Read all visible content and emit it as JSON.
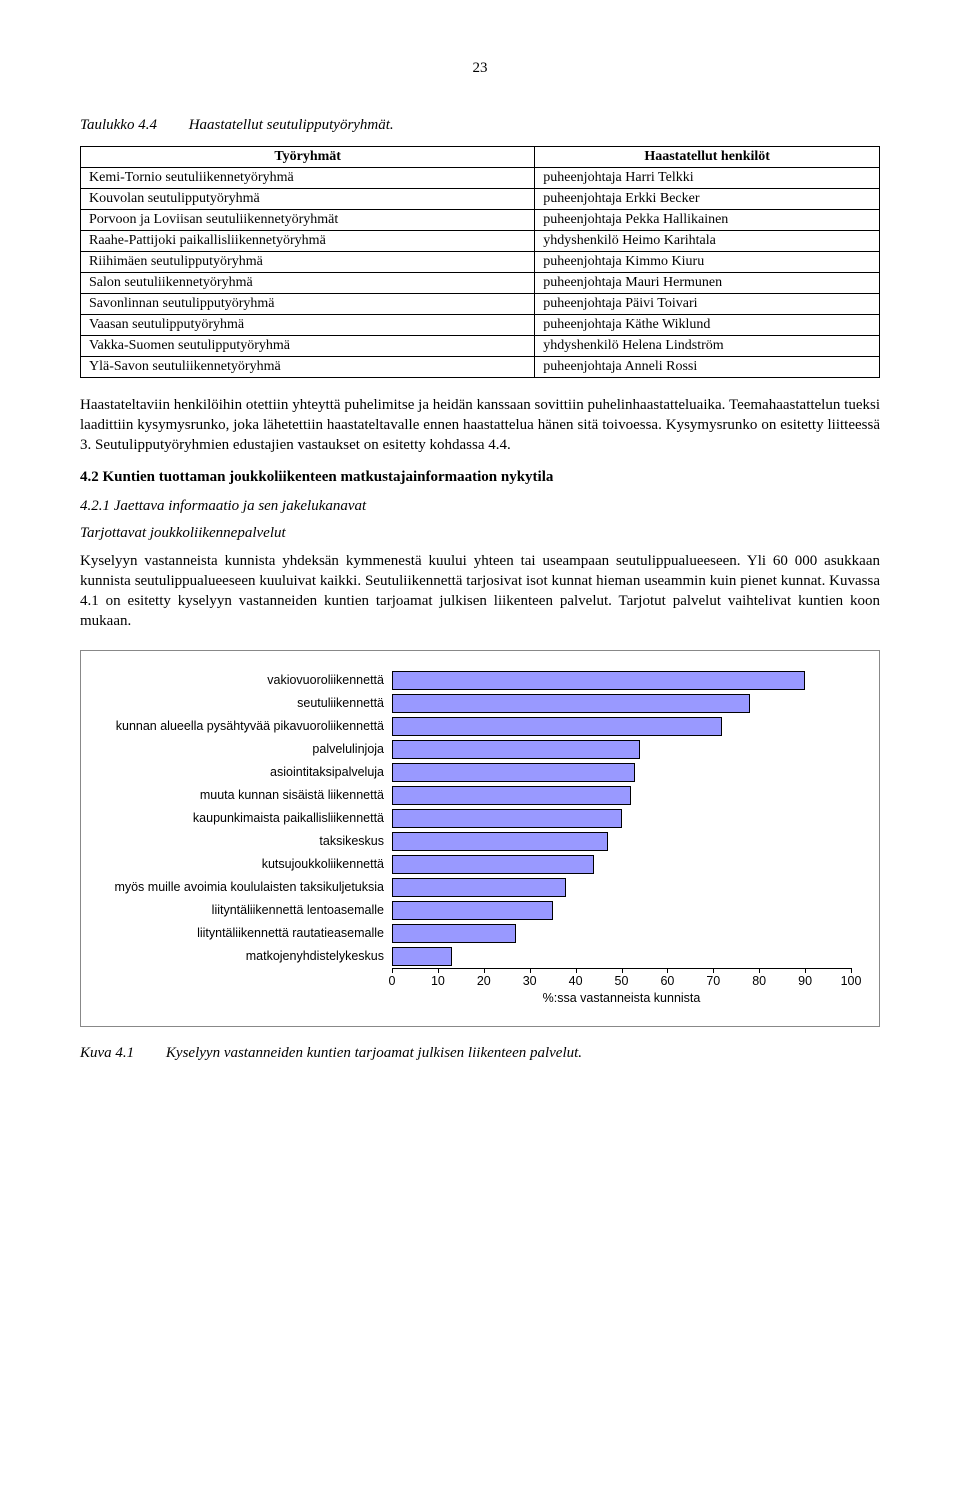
{
  "page_number": "23",
  "table_caption": {
    "num": "Taulukko 4.4",
    "text": "Haastatellut seutulipputyöryhmät."
  },
  "table": {
    "headers": [
      "Työryhmät",
      "Haastatellut henkilöt"
    ],
    "rows": [
      [
        "Kemi-Tornio seutuliikennetyöryhmä",
        "puheenjohtaja Harri Telkki"
      ],
      [
        "Kouvolan seutulipputyöryhmä",
        "puheenjohtaja Erkki Becker"
      ],
      [
        "Porvoon ja Loviisan seutuliikennetyöryhmät",
        "puheenjohtaja Pekka Hallikainen"
      ],
      [
        "Raahe-Pattijoki paikallisliikennetyöryhmä",
        "yhdyshenkilö Heimo Karihtala"
      ],
      [
        "Riihimäen seutulipputyöryhmä",
        "puheenjohtaja Kimmo Kiuru"
      ],
      [
        "Salon seutuliikennetyöryhmä",
        "puheenjohtaja Mauri Hermunen"
      ],
      [
        "Savonlinnan seutulipputyöryhmä",
        "puheenjohtaja Päivi Toivari"
      ],
      [
        "Vaasan seutulipputyöryhmä",
        "puheenjohtaja Käthe Wiklund"
      ],
      [
        "Vakka-Suomen seutulipputyöryhmä",
        "yhdyshenkilö Helena Lindström"
      ],
      [
        "Ylä-Savon seutuliikennetyöryhmä",
        "puheenjohtaja Anneli Rossi"
      ]
    ]
  },
  "para1": "Haastateltaviin henkilöihin otettiin yhteyttä puhelimitse ja heidän kanssaan sovittiin puhelinhaastatteluaika. Teemahaastattelun tueksi laadittiin kysymysrunko, joka lähetettiin haastateltavalle ennen haastattelua hänen sitä toivoessa. Kysymysrunko on esitetty liitteessä 3. Seutulipputyöryhmien edustajien vastaukset on esitetty kohdassa 4.4.",
  "heading42": "4.2 Kuntien tuottaman joukkoliikenteen matkustajainformaation nykytila",
  "sub421": "4.2.1 Jaettava informaatio ja sen jakelukanavat",
  "sub_service": "Tarjottavat joukkoliikennepalvelut",
  "para2": "Kyselyyn vastanneista kunnista yhdeksän kymmenestä kuului yhteen tai useampaan seutulippualueeseen. Yli 60 000 asukkaan kunnista seutulippualueeseen kuuluivat kaikki. Seutuliikennettä tarjosivat isot kunnat hieman useammin kuin pienet kunnat. Kuvassa 4.1 on esitetty kyselyyn vastanneiden kuntien tarjoamat julkisen liikenteen palvelut. Tarjotut palvelut vaihtelivat kuntien koon mukaan.",
  "chart": {
    "type": "bar-horizontal",
    "bar_color": "#9999ff",
    "bar_border": "#000000",
    "background_color": "#ffffff",
    "grid_color": "#cccccc",
    "font_family": "Arial",
    "label_fontsize": 12.5,
    "xlim": [
      0,
      100
    ],
    "xtick_step": 10,
    "xticks": [
      0,
      10,
      20,
      30,
      40,
      50,
      60,
      70,
      80,
      90,
      100
    ],
    "x_axis_label": "%:ssa vastanneista kunnista",
    "bars": [
      {
        "label": "vakiovuoroliikennettä",
        "value": 90
      },
      {
        "label": "seutuliikennettä",
        "value": 78
      },
      {
        "label": "kunnan alueella pysähtyvää pikavuoroliikennettä",
        "value": 72
      },
      {
        "label": "palvelulinjoja",
        "value": 54
      },
      {
        "label": "asiointitaksipalveluja",
        "value": 53
      },
      {
        "label": "muuta kunnan sisäistä liikennettä",
        "value": 52
      },
      {
        "label": "kaupunkimaista paikallisliikennettä",
        "value": 50
      },
      {
        "label": "taksikeskus",
        "value": 47
      },
      {
        "label": "kutsujoukkoliikennettä",
        "value": 44
      },
      {
        "label": "myös muille avoimia koululaisten taksikuljetuksia",
        "value": 38
      },
      {
        "label": "liityntäliikennettä lentoasemalle",
        "value": 35
      },
      {
        "label": "liityntäliikennettä rautatieasemalle",
        "value": 27
      },
      {
        "label": "matkojenyhdistelykeskus",
        "value": 13
      }
    ]
  },
  "fig_caption": {
    "num": "Kuva 4.1",
    "text": "Kyselyyn vastanneiden kuntien tarjoamat julkisen liikenteen palvelut."
  }
}
